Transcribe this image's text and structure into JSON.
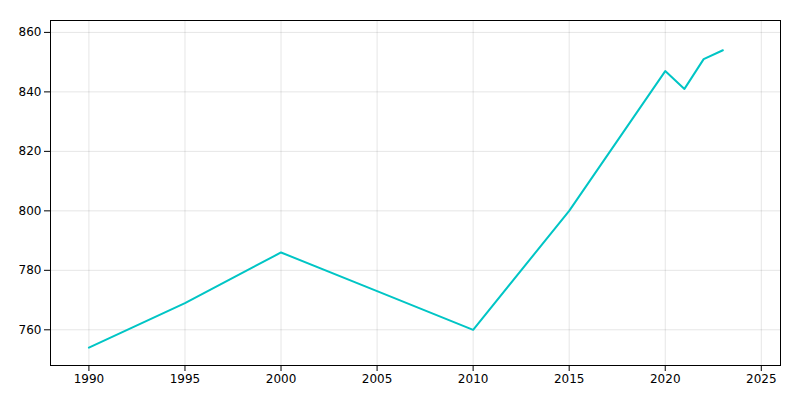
{
  "chart_data": {
    "type": "line",
    "x": [
      1990,
      1995,
      2000,
      2005,
      2010,
      2015,
      2020,
      2021,
      2022,
      2023
    ],
    "values": [
      754,
      769,
      786,
      773,
      760,
      800,
      847,
      841,
      851,
      854
    ],
    "color": "#00C5C5",
    "xlim": [
      1988,
      2026
    ],
    "ylim": [
      748,
      864
    ],
    "xticks": [
      1990,
      1995,
      2000,
      2005,
      2010,
      2015,
      2020,
      2025
    ],
    "yticks": [
      760,
      780,
      800,
      820,
      840,
      860
    ],
    "grid": true
  }
}
